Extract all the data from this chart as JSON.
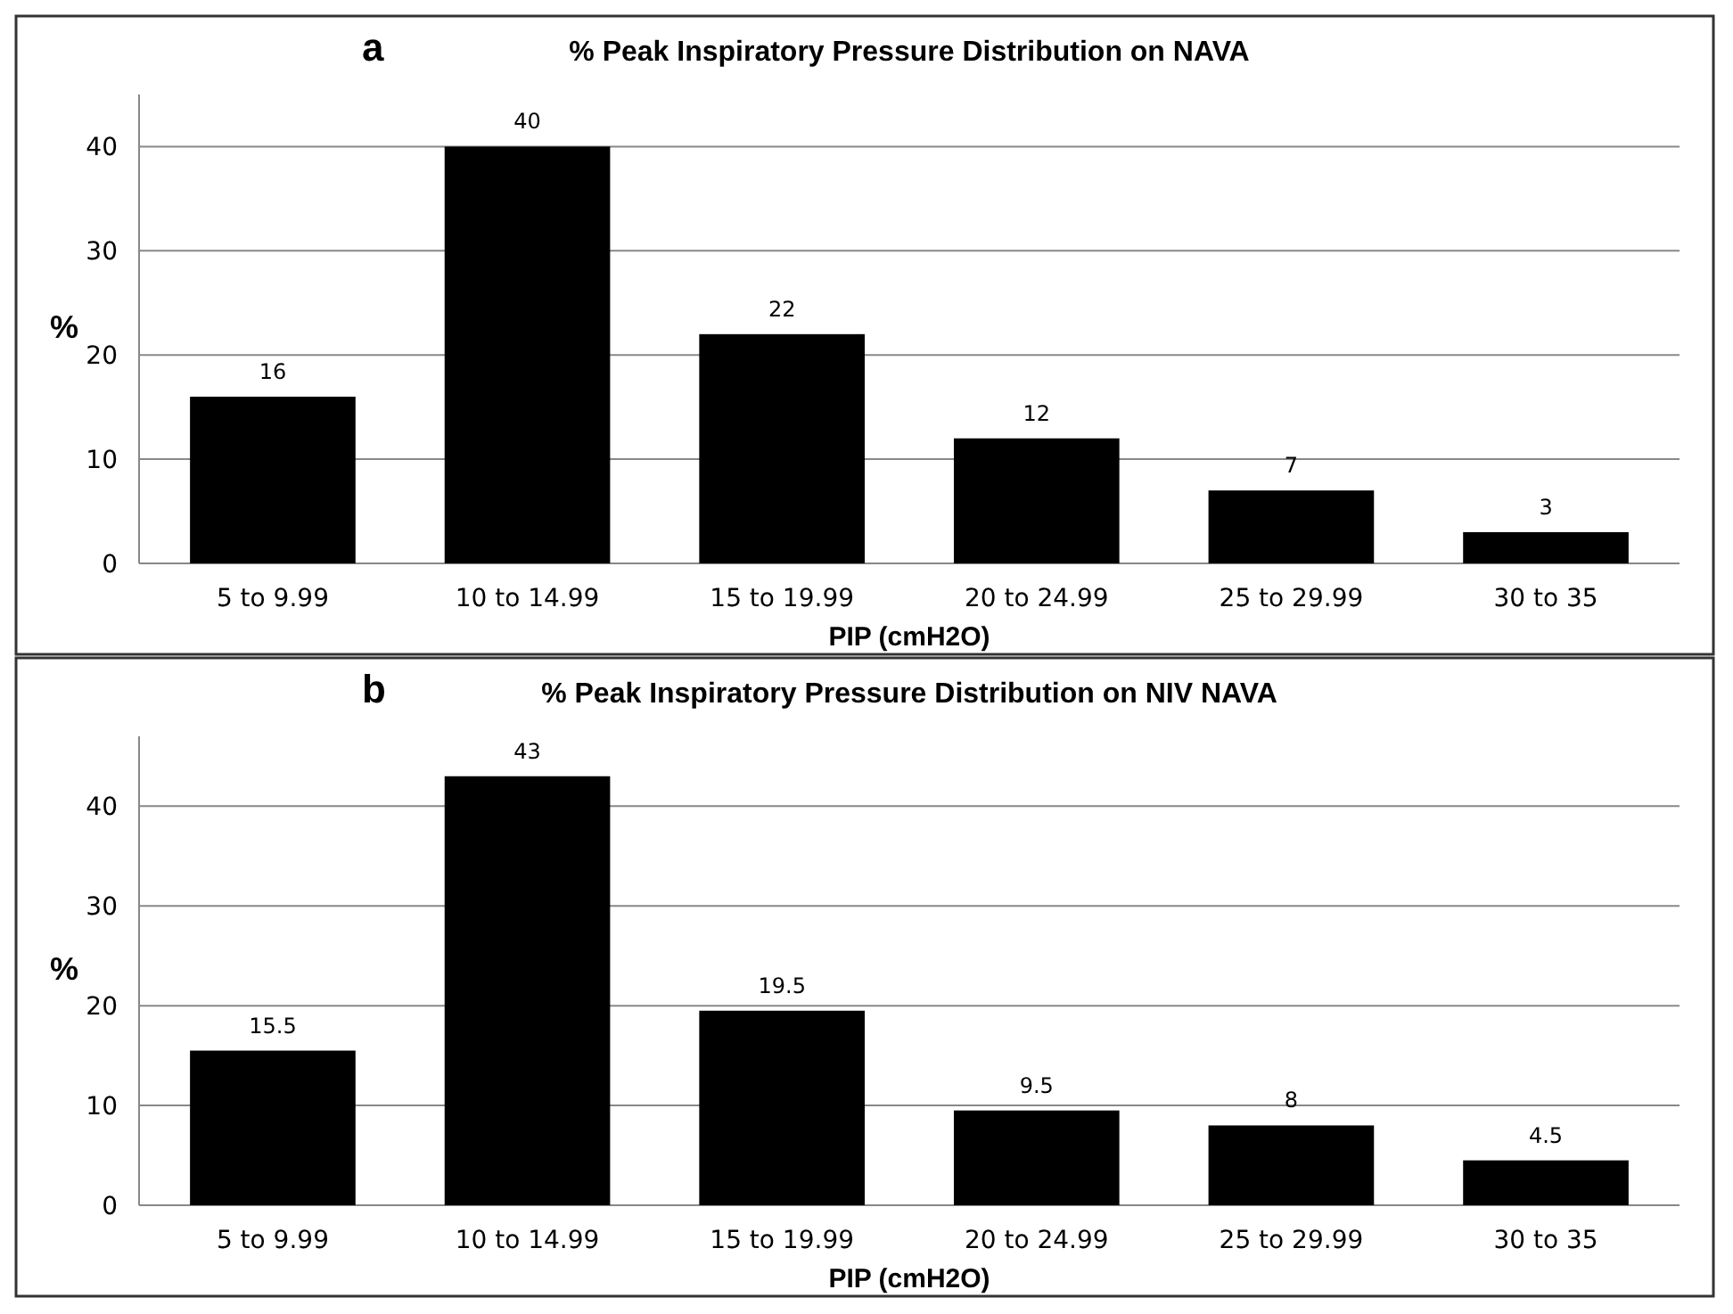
{
  "chart_data": [
    {
      "type": "bar",
      "title": "% Peak Inspiratory Pressure Distribution on NAVA",
      "annotations": [
        "a"
      ],
      "xlabel": "PIP (cmH2O)",
      "ylabel": "%",
      "categories": [
        "5 to 9.99",
        "10 to 14.99",
        "15 to 19.99",
        "20 to 24.99",
        "25 to 29.99",
        "30 to 35"
      ],
      "values": [
        16,
        40,
        22,
        12,
        7,
        3
      ],
      "color": "#000000",
      "ylim": [
        0,
        45
      ],
      "yticks": [
        0,
        10,
        20,
        30,
        40
      ],
      "grid": "y",
      "data_labels": true
    },
    {
      "type": "bar",
      "title": "% Peak Inspiratory Pressure  Distribution on NIV NAVA",
      "annotations": [
        "b"
      ],
      "xlabel": "PIP (cmH2O)",
      "ylabel": "%",
      "categories": [
        "5 to 9.99",
        "10 to 14.99",
        "15 to 19.99",
        "20 to 24.99",
        "25 to 29.99",
        "30 to 35"
      ],
      "values": [
        15.5,
        43,
        19.5,
        9.5,
        8,
        4.5
      ],
      "color": "#000000",
      "ylim": [
        0,
        47
      ],
      "yticks": [
        0,
        10,
        20,
        30,
        40
      ],
      "grid": "y",
      "data_labels": true
    }
  ]
}
